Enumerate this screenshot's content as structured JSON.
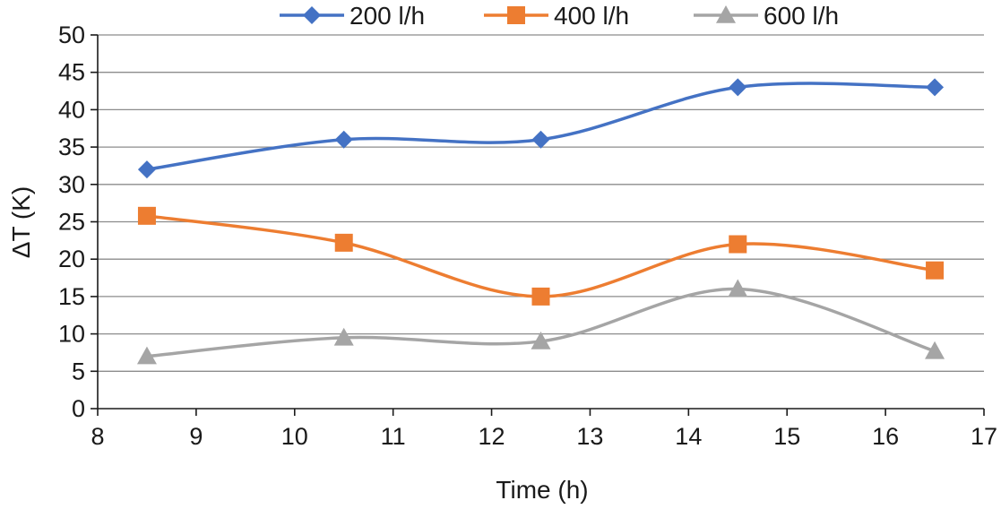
{
  "chart_data": {
    "type": "line",
    "title": "",
    "xlabel": "Time (h)",
    "ylabel": "ΔT (K)",
    "xlim": [
      8,
      17
    ],
    "ylim": [
      0,
      50
    ],
    "xticks": [
      8,
      9,
      10,
      11,
      12,
      13,
      14,
      15,
      16,
      17
    ],
    "yticks": [
      0,
      5,
      10,
      15,
      20,
      25,
      30,
      35,
      40,
      45,
      50
    ],
    "grid": "horizontal",
    "legend_position": "top",
    "x": [
      8.5,
      10.5,
      12.5,
      14.5,
      16.5
    ],
    "series": [
      {
        "name": "200 l/h",
        "marker": "diamond",
        "color": "#4472C4",
        "values": [
          32,
          36,
          36,
          43,
          43
        ]
      },
      {
        "name": "400 l/h",
        "marker": "square",
        "color": "#ED7D31",
        "values": [
          25.8,
          22.2,
          15,
          22,
          18.5
        ]
      },
      {
        "name": "600 l/h",
        "marker": "triangle",
        "color": "#A5A5A5",
        "values": [
          7,
          9.5,
          9,
          16,
          7.7
        ]
      }
    ]
  }
}
